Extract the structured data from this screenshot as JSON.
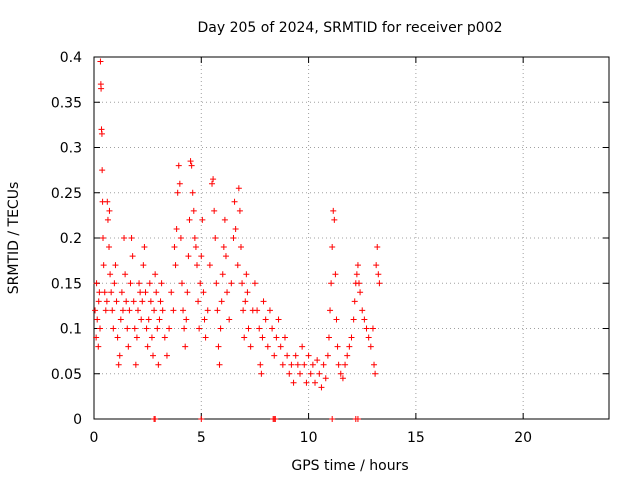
{
  "chart_data": {
    "type": "scatter",
    "title": "Day 205 of 2024, SRMTID for receiver p002",
    "xlabel": "GPS time / hours",
    "ylabel": "SRMTID / TECUs",
    "xlim": [
      0,
      24
    ],
    "ylim": [
      0,
      0.4
    ],
    "xticks": [
      0,
      5,
      10,
      15,
      20
    ],
    "xtick_labels": [
      "0",
      "5",
      "10",
      "15",
      "20"
    ],
    "yticks": [
      0,
      0.05,
      0.1,
      0.15,
      0.2,
      0.25,
      0.3,
      0.35,
      0.4
    ],
    "ytick_labels": [
      "0",
      "0.05",
      "0.1",
      "0.15",
      "0.2",
      "0.25",
      "0.3",
      "0.35",
      "0.4"
    ],
    "grid": true,
    "marker": "+",
    "color": "#ff0000",
    "series": [
      {
        "name": "SRMTID p002",
        "points": [
          [
            0.05,
            0.12
          ],
          [
            0.1,
            0.09
          ],
          [
            0.12,
            0.15
          ],
          [
            0.15,
            0.11
          ],
          [
            0.2,
            0.08
          ],
          [
            0.22,
            0.13
          ],
          [
            0.25,
            0.14
          ],
          [
            0.28,
            0.1
          ],
          [
            0.3,
            0.395
          ],
          [
            0.32,
            0.37
          ],
          [
            0.33,
            0.365
          ],
          [
            0.35,
            0.32
          ],
          [
            0.37,
            0.315
          ],
          [
            0.38,
            0.275
          ],
          [
            0.4,
            0.24
          ],
          [
            0.42,
            0.2
          ],
          [
            0.45,
            0.17
          ],
          [
            0.5,
            0.14
          ],
          [
            0.55,
            0.12
          ],
          [
            0.6,
            0.13
          ],
          [
            0.62,
            0.24
          ],
          [
            0.65,
            0.22
          ],
          [
            0.7,
            0.19
          ],
          [
            0.72,
            0.23
          ],
          [
            0.75,
            0.16
          ],
          [
            0.8,
            0.14
          ],
          [
            0.85,
            0.12
          ],
          [
            0.9,
            0.1
          ],
          [
            0.95,
            0.15
          ],
          [
            1.0,
            0.17
          ],
          [
            1.05,
            0.13
          ],
          [
            1.1,
            0.09
          ],
          [
            1.15,
            0.06
          ],
          [
            1.2,
            0.07
          ],
          [
            1.25,
            0.11
          ],
          [
            1.3,
            0.14
          ],
          [
            1.35,
            0.12
          ],
          [
            1.4,
            0.2
          ],
          [
            1.45,
            0.16
          ],
          [
            1.5,
            0.13
          ],
          [
            1.55,
            0.1
          ],
          [
            1.6,
            0.08
          ],
          [
            1.65,
            0.12
          ],
          [
            1.7,
            0.15
          ],
          [
            1.75,
            0.2
          ],
          [
            1.8,
            0.18
          ],
          [
            1.85,
            0.13
          ],
          [
            1.9,
            0.1
          ],
          [
            1.95,
            0.06
          ],
          [
            2.0,
            0.09
          ],
          [
            2.05,
            0.12
          ],
          [
            2.1,
            0.15
          ],
          [
            2.15,
            0.14
          ],
          [
            2.2,
            0.11
          ],
          [
            2.25,
            0.13
          ],
          [
            2.3,
            0.17
          ],
          [
            2.35,
            0.19
          ],
          [
            2.4,
            0.14
          ],
          [
            2.45,
            0.1
          ],
          [
            2.5,
            0.08
          ],
          [
            2.55,
            0.11
          ],
          [
            2.6,
            0.15
          ],
          [
            2.65,
            0.13
          ],
          [
            2.7,
            0.09
          ],
          [
            2.75,
            0.07
          ],
          [
            2.8,
            0.12
          ],
          [
            2.85,
            0.16
          ],
          [
            2.9,
            0.14
          ],
          [
            2.95,
            0.1
          ],
          [
            3.0,
            0.06
          ],
          [
            3.05,
            0.11
          ],
          [
            3.1,
            0.13
          ],
          [
            3.15,
            0.15
          ],
          [
            3.2,
            0.12
          ],
          [
            3.3,
            0.09
          ],
          [
            3.4,
            0.07
          ],
          [
            3.5,
            0.1
          ],
          [
            3.6,
            0.14
          ],
          [
            3.7,
            0.12
          ],
          [
            3.75,
            0.19
          ],
          [
            3.8,
            0.17
          ],
          [
            3.85,
            0.21
          ],
          [
            3.9,
            0.25
          ],
          [
            3.95,
            0.28
          ],
          [
            4.0,
            0.26
          ],
          [
            4.05,
            0.2
          ],
          [
            4.1,
            0.15
          ],
          [
            4.15,
            0.12
          ],
          [
            4.2,
            0.1
          ],
          [
            4.25,
            0.08
          ],
          [
            4.3,
            0.11
          ],
          [
            4.35,
            0.14
          ],
          [
            4.4,
            0.18
          ],
          [
            4.45,
            0.22
          ],
          [
            4.5,
            0.285
          ],
          [
            4.55,
            0.28
          ],
          [
            4.6,
            0.25
          ],
          [
            4.65,
            0.23
          ],
          [
            4.7,
            0.2
          ],
          [
            4.75,
            0.19
          ],
          [
            4.8,
            0.17
          ],
          [
            4.85,
            0.13
          ],
          [
            4.9,
            0.1
          ],
          [
            4.95,
            0.15
          ],
          [
            5.0,
            0.18
          ],
          [
            5.05,
            0.22
          ],
          [
            5.1,
            0.14
          ],
          [
            5.15,
            0.11
          ],
          [
            5.2,
            0.09
          ],
          [
            5.3,
            0.12
          ],
          [
            5.4,
            0.17
          ],
          [
            5.5,
            0.26
          ],
          [
            5.55,
            0.265
          ],
          [
            5.6,
            0.23
          ],
          [
            5.65,
            0.2
          ],
          [
            5.7,
            0.15
          ],
          [
            5.75,
            0.12
          ],
          [
            5.8,
            0.08
          ],
          [
            5.85,
            0.06
          ],
          [
            5.9,
            0.1
          ],
          [
            5.95,
            0.13
          ],
          [
            6.0,
            0.16
          ],
          [
            6.05,
            0.19
          ],
          [
            6.1,
            0.22
          ],
          [
            6.15,
            0.18
          ],
          [
            6.2,
            0.14
          ],
          [
            6.3,
            0.11
          ],
          [
            6.4,
            0.15
          ],
          [
            6.5,
            0.2
          ],
          [
            6.55,
            0.24
          ],
          [
            6.6,
            0.21
          ],
          [
            6.7,
            0.17
          ],
          [
            6.75,
            0.255
          ],
          [
            6.8,
            0.23
          ],
          [
            6.85,
            0.19
          ],
          [
            6.9,
            0.15
          ],
          [
            6.95,
            0.12
          ],
          [
            7.0,
            0.09
          ],
          [
            7.05,
            0.13
          ],
          [
            7.1,
            0.16
          ],
          [
            7.15,
            0.14
          ],
          [
            7.2,
            0.1
          ],
          [
            7.3,
            0.08
          ],
          [
            7.4,
            0.12
          ],
          [
            7.5,
            0.15
          ],
          [
            7.6,
            0.12
          ],
          [
            7.7,
            0.1
          ],
          [
            7.75,
            0.06
          ],
          [
            7.8,
            0.05
          ],
          [
            7.85,
            0.09
          ],
          [
            7.9,
            0.13
          ],
          [
            8.0,
            0.11
          ],
          [
            8.1,
            0.08
          ],
          [
            8.2,
            0.12
          ],
          [
            8.3,
            0.1
          ],
          [
            8.4,
            0.07
          ],
          [
            8.5,
            0.09
          ],
          [
            8.6,
            0.11
          ],
          [
            8.7,
            0.08
          ],
          [
            8.8,
            0.06
          ],
          [
            8.9,
            0.09
          ],
          [
            9.0,
            0.07
          ],
          [
            9.1,
            0.05
          ],
          [
            9.2,
            0.06
          ],
          [
            9.3,
            0.04
          ],
          [
            9.4,
            0.07
          ],
          [
            9.5,
            0.06
          ],
          [
            9.6,
            0.05
          ],
          [
            9.7,
            0.08
          ],
          [
            9.8,
            0.06
          ],
          [
            9.9,
            0.04
          ],
          [
            10.0,
            0.07
          ],
          [
            10.1,
            0.05
          ],
          [
            10.2,
            0.06
          ],
          [
            10.3,
            0.04
          ],
          [
            10.4,
            0.065
          ],
          [
            10.5,
            0.05
          ],
          [
            10.6,
            0.035
          ],
          [
            10.7,
            0.06
          ],
          [
            10.8,
            0.045
          ],
          [
            10.9,
            0.07
          ],
          [
            10.95,
            0.09
          ],
          [
            11.0,
            0.12
          ],
          [
            11.05,
            0.15
          ],
          [
            11.1,
            0.19
          ],
          [
            11.15,
            0.23
          ],
          [
            11.2,
            0.22
          ],
          [
            11.25,
            0.16
          ],
          [
            11.3,
            0.11
          ],
          [
            11.35,
            0.08
          ],
          [
            11.4,
            0.06
          ],
          [
            11.5,
            0.05
          ],
          [
            11.6,
            0.045
          ],
          [
            11.7,
            0.06
          ],
          [
            11.8,
            0.07
          ],
          [
            11.9,
            0.08
          ],
          [
            12.0,
            0.09
          ],
          [
            12.1,
            0.11
          ],
          [
            12.15,
            0.13
          ],
          [
            12.2,
            0.15
          ],
          [
            12.25,
            0.16
          ],
          [
            12.3,
            0.17
          ],
          [
            12.35,
            0.15
          ],
          [
            12.4,
            0.14
          ],
          [
            12.5,
            0.12
          ],
          [
            12.6,
            0.11
          ],
          [
            12.7,
            0.1
          ],
          [
            12.8,
            0.09
          ],
          [
            12.9,
            0.08
          ],
          [
            13.0,
            0.1
          ],
          [
            13.05,
            0.06
          ],
          [
            13.1,
            0.05
          ],
          [
            13.15,
            0.17
          ],
          [
            13.2,
            0.19
          ],
          [
            13.25,
            0.16
          ],
          [
            13.3,
            0.15
          ],
          [
            2.8,
            0
          ],
          [
            2.85,
            0
          ],
          [
            5.0,
            0
          ],
          [
            8.35,
            0
          ],
          [
            8.4,
            0
          ],
          [
            8.45,
            0
          ],
          [
            11.1,
            0
          ],
          [
            12.2,
            0
          ],
          [
            12.3,
            0
          ]
        ]
      }
    ]
  }
}
